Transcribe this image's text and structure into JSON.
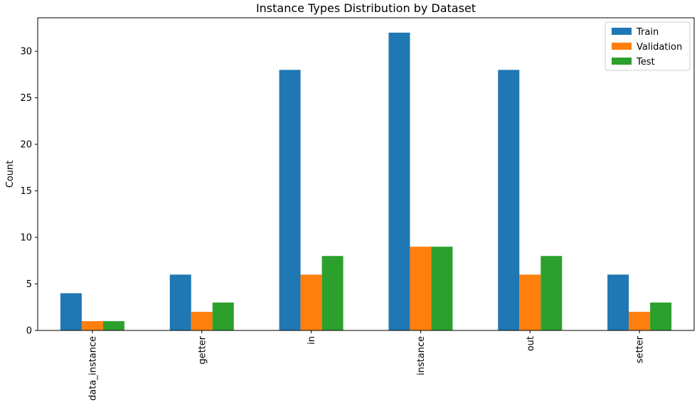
{
  "chart_data": {
    "type": "bar",
    "title": "Instance Types Distribution by Dataset",
    "xlabel": "",
    "ylabel": "Count",
    "categories": [
      "data_instance",
      "getter",
      "in",
      "instance",
      "out",
      "setter"
    ],
    "series": [
      {
        "name": "Train",
        "color": "#1f77b4",
        "values": [
          4,
          6,
          28,
          32,
          28,
          6
        ]
      },
      {
        "name": "Validation",
        "color": "#ff7f0e",
        "values": [
          1,
          2,
          6,
          9,
          6,
          2
        ]
      },
      {
        "name": "Test",
        "color": "#2ca02c",
        "values": [
          1,
          3,
          8,
          9,
          8,
          3
        ]
      }
    ],
    "ylim": [
      0,
      33.6
    ],
    "yticks": [
      0,
      5,
      10,
      15,
      20,
      25,
      30
    ],
    "x_tick_rotation": "vertical",
    "grid": false,
    "legend_position": "top-right"
  }
}
